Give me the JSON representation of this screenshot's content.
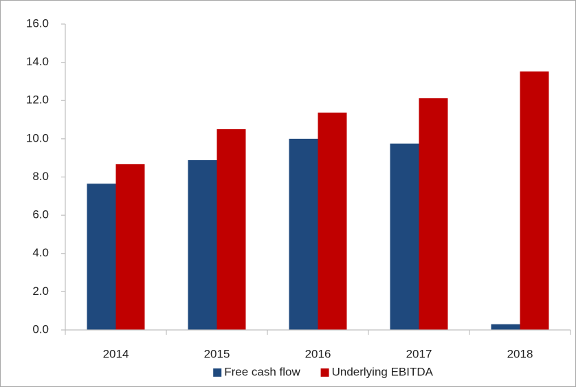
{
  "chart_data": {
    "type": "bar",
    "categories": [
      "2014",
      "2015",
      "2016",
      "2017",
      "2018"
    ],
    "series": [
      {
        "name": "Free cash flow",
        "color": "#1f497d",
        "values": [
          7.65,
          8.88,
          10.0,
          9.75,
          0.3
        ]
      },
      {
        "name": "Underlying EBITDA",
        "color": "#c00000",
        "values": [
          8.67,
          10.5,
          11.37,
          12.12,
          13.52
        ]
      }
    ],
    "ylim": [
      0,
      16
    ],
    "yticks": [
      {
        "value": 0,
        "label": "0.0"
      },
      {
        "value": 2,
        "label": "2.0"
      },
      {
        "value": 4,
        "label": "4.0"
      },
      {
        "value": 6,
        "label": "6.0"
      },
      {
        "value": 8,
        "label": "8.0"
      },
      {
        "value": 10,
        "label": "10.0"
      },
      {
        "value": 12,
        "label": "12.0"
      },
      {
        "value": 14,
        "label": "14.0"
      },
      {
        "value": 16,
        "label": "16.0"
      }
    ],
    "legend": "bottom"
  }
}
